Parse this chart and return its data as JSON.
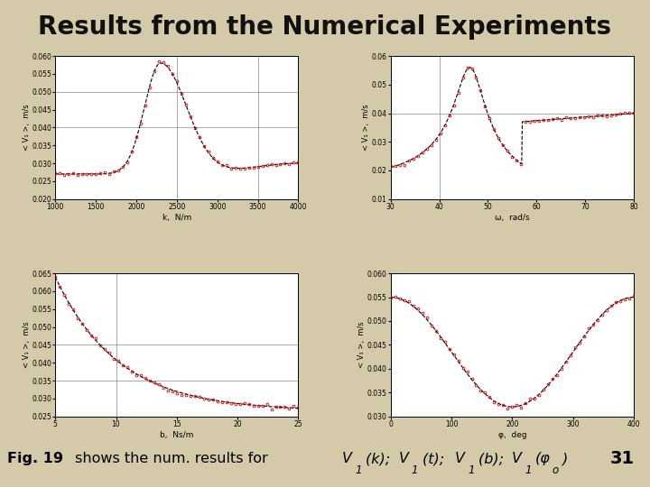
{
  "title": "Results from the Numerical Experiments",
  "title_fontsize": 20,
  "background_color": "#d4c9a8",
  "plot_bg": "#ffffff",
  "line_color": "#000000",
  "dot_color": "#cc0000",
  "caption_num": "31",
  "plots": [
    {
      "xlabel": "k,  N/m",
      "ylabel": "< V₁ >,  m/s",
      "xlim": [
        1000,
        4000
      ],
      "ylim": [
        0.02,
        0.06
      ],
      "xticks": [
        1000,
        1500,
        2000,
        2500,
        3000,
        3500,
        4000
      ],
      "yticks": [
        0.02,
        0.025,
        0.03,
        0.035,
        0.04,
        0.045,
        0.05,
        0.055,
        0.06
      ],
      "xgrid": [
        2500,
        3500
      ],
      "ygrid": [
        0.04,
        0.05
      ]
    },
    {
      "xlabel": "ω,  rad/s",
      "ylabel": "< V₁ >,  m/s",
      "xlim": [
        30,
        80
      ],
      "ylim": [
        0.01,
        0.06
      ],
      "xticks": [
        30,
        40,
        50,
        60,
        70,
        80
      ],
      "yticks": [
        0.01,
        0.02,
        0.03,
        0.04,
        0.05,
        0.06
      ],
      "xgrid": [
        40
      ],
      "ygrid": [
        0.04
      ]
    },
    {
      "xlabel": "b,  Ns/m",
      "ylabel": "< V₁ >,  m/s",
      "xlim": [
        5,
        25
      ],
      "ylim": [
        0.025,
        0.065
      ],
      "xticks": [
        5,
        10,
        15,
        20,
        25
      ],
      "yticks": [
        0.025,
        0.03,
        0.035,
        0.04,
        0.045,
        0.05,
        0.055,
        0.06,
        0.065
      ],
      "xgrid": [
        10
      ],
      "ygrid": [
        0.035,
        0.045
      ]
    },
    {
      "xlabel": "φ,  deg",
      "ylabel": "< V₁ >,  m/s",
      "xlim": [
        0,
        400
      ],
      "ylim": [
        0.03,
        0.06
      ],
      "xticks": [
        0,
        100,
        200,
        300,
        400
      ],
      "yticks": [
        0.03,
        0.035,
        0.04,
        0.045,
        0.05,
        0.055,
        0.06
      ],
      "xgrid": [],
      "ygrid": []
    }
  ]
}
